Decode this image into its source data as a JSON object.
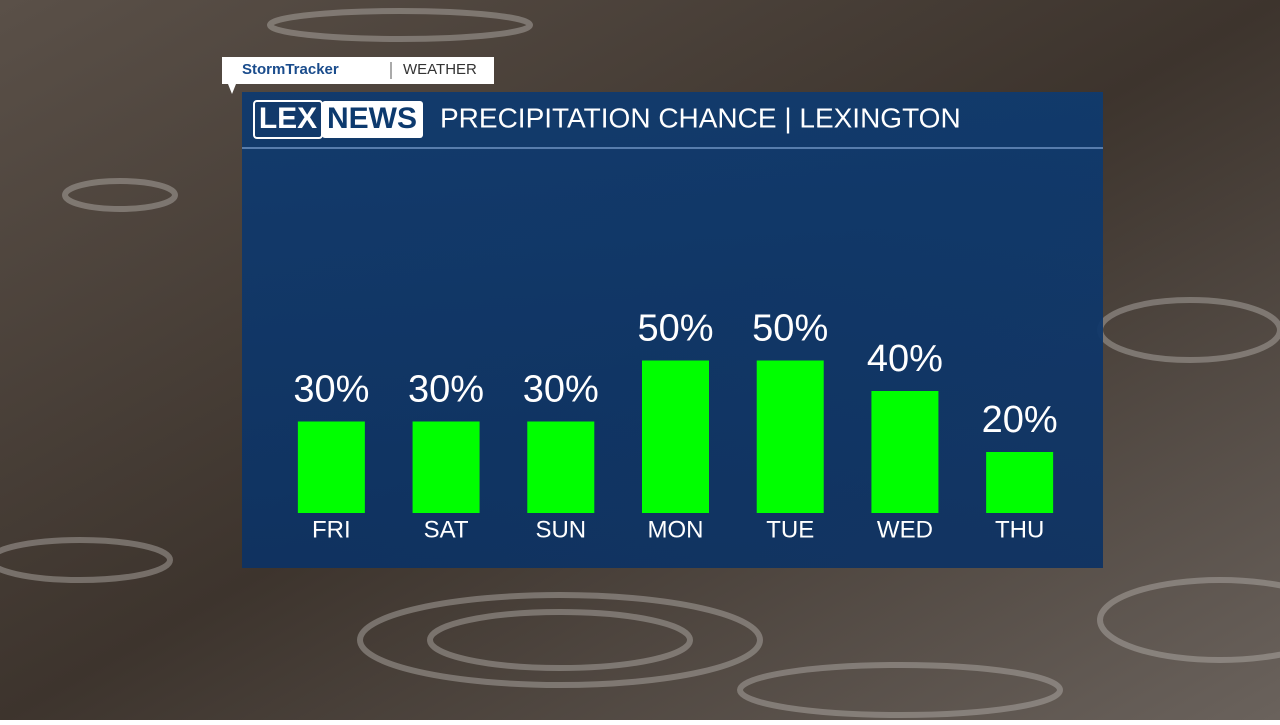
{
  "branding": {
    "stormtracker": "StormTracker",
    "section": "WEATHER"
  },
  "logo": {
    "lex": "LEX",
    "news": "NEWS"
  },
  "chart_data": {
    "type": "bar",
    "title": "PRECIPITATION CHANCE | LEXINGTON",
    "categories": [
      "FRI",
      "SAT",
      "SUN",
      "MON",
      "TUE",
      "WED",
      "THU"
    ],
    "values": [
      30,
      30,
      30,
      50,
      50,
      40,
      20
    ],
    "value_labels": [
      "30%",
      "30%",
      "30%",
      "50%",
      "50%",
      "40%",
      "20%"
    ],
    "color": "#00ff00"
  }
}
